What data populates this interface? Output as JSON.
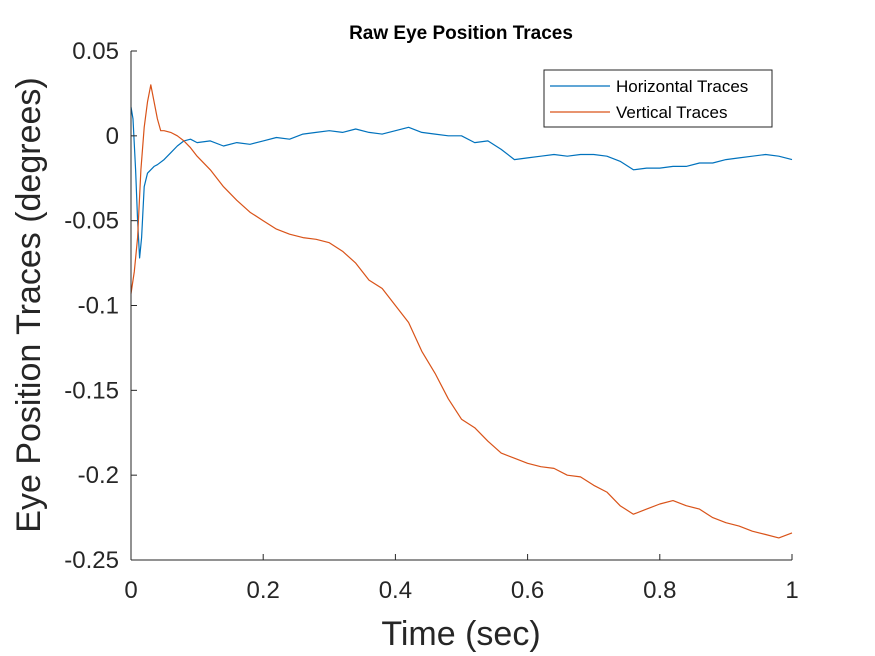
{
  "chart_data": {
    "type": "line",
    "title": "Raw Eye Position Traces",
    "xlabel": "Time (sec)",
    "ylabel": "Eye Position Traces (degrees)",
    "xlim": [
      0,
      1
    ],
    "ylim": [
      -0.25,
      0.05
    ],
    "xticks": [
      0,
      0.2,
      0.4,
      0.6,
      0.8,
      1
    ],
    "xtick_labels": [
      "0",
      "0.2",
      "0.4",
      "0.6",
      "0.8",
      "1"
    ],
    "yticks": [
      0.05,
      0,
      -0.05,
      -0.1,
      -0.15,
      -0.2,
      -0.25
    ],
    "ytick_labels": [
      "0.05",
      "0",
      "-0.05",
      "-0.1",
      "-0.15",
      "-0.2",
      "-0.25"
    ],
    "grid": false,
    "legend_position": "top-right",
    "series": [
      {
        "name": "Horizontal Traces",
        "color": "#0072BD",
        "x": [
          0,
          0.003,
          0.007,
          0.01,
          0.013,
          0.016,
          0.02,
          0.025,
          0.03,
          0.035,
          0.04,
          0.05,
          0.06,
          0.07,
          0.08,
          0.09,
          0.1,
          0.12,
          0.14,
          0.16,
          0.18,
          0.2,
          0.22,
          0.24,
          0.26,
          0.28,
          0.3,
          0.32,
          0.34,
          0.36,
          0.38,
          0.4,
          0.42,
          0.44,
          0.46,
          0.48,
          0.5,
          0.52,
          0.54,
          0.56,
          0.58,
          0.6,
          0.62,
          0.64,
          0.66,
          0.68,
          0.7,
          0.72,
          0.74,
          0.76,
          0.78,
          0.8,
          0.82,
          0.84,
          0.86,
          0.88,
          0.9,
          0.92,
          0.94,
          0.96,
          0.98,
          1.0
        ],
        "y": [
          0.017,
          0.01,
          -0.02,
          -0.05,
          -0.072,
          -0.06,
          -0.03,
          -0.022,
          -0.02,
          -0.018,
          -0.017,
          -0.014,
          -0.01,
          -0.006,
          -0.003,
          -0.002,
          -0.004,
          -0.003,
          -0.006,
          -0.004,
          -0.005,
          -0.003,
          -0.001,
          -0.002,
          0.001,
          0.002,
          0.003,
          0.002,
          0.004,
          0.002,
          0.001,
          0.003,
          0.005,
          0.002,
          0.001,
          0.0,
          0.0,
          -0.004,
          -0.003,
          -0.008,
          -0.014,
          -0.013,
          -0.012,
          -0.011,
          -0.012,
          -0.011,
          -0.011,
          -0.012,
          -0.015,
          -0.02,
          -0.019,
          -0.019,
          -0.018,
          -0.018,
          -0.016,
          -0.016,
          -0.014,
          -0.013,
          -0.012,
          -0.011,
          -0.012,
          -0.014
        ]
      },
      {
        "name": "Vertical Traces",
        "color": "#D95319",
        "x": [
          0,
          0.005,
          0.01,
          0.015,
          0.02,
          0.025,
          0.03,
          0.035,
          0.04,
          0.045,
          0.05,
          0.06,
          0.07,
          0.08,
          0.09,
          0.1,
          0.12,
          0.14,
          0.16,
          0.18,
          0.2,
          0.22,
          0.24,
          0.26,
          0.28,
          0.3,
          0.32,
          0.34,
          0.36,
          0.38,
          0.4,
          0.42,
          0.44,
          0.46,
          0.48,
          0.5,
          0.52,
          0.54,
          0.56,
          0.58,
          0.6,
          0.62,
          0.64,
          0.66,
          0.68,
          0.7,
          0.72,
          0.74,
          0.76,
          0.78,
          0.8,
          0.82,
          0.84,
          0.86,
          0.88,
          0.9,
          0.92,
          0.94,
          0.96,
          0.98,
          1.0
        ],
        "y": [
          -0.093,
          -0.08,
          -0.06,
          -0.02,
          0.005,
          0.02,
          0.03,
          0.02,
          0.01,
          0.003,
          0.003,
          0.002,
          0.0,
          -0.003,
          -0.007,
          -0.012,
          -0.02,
          -0.03,
          -0.038,
          -0.045,
          -0.05,
          -0.055,
          -0.058,
          -0.06,
          -0.061,
          -0.063,
          -0.068,
          -0.075,
          -0.085,
          -0.09,
          -0.1,
          -0.11,
          -0.127,
          -0.14,
          -0.155,
          -0.167,
          -0.172,
          -0.18,
          -0.187,
          -0.19,
          -0.193,
          -0.195,
          -0.196,
          -0.2,
          -0.201,
          -0.206,
          -0.21,
          -0.218,
          -0.223,
          -0.22,
          -0.217,
          -0.215,
          -0.218,
          -0.22,
          -0.225,
          -0.228,
          -0.23,
          -0.233,
          -0.235,
          -0.237,
          -0.234
        ]
      }
    ]
  }
}
